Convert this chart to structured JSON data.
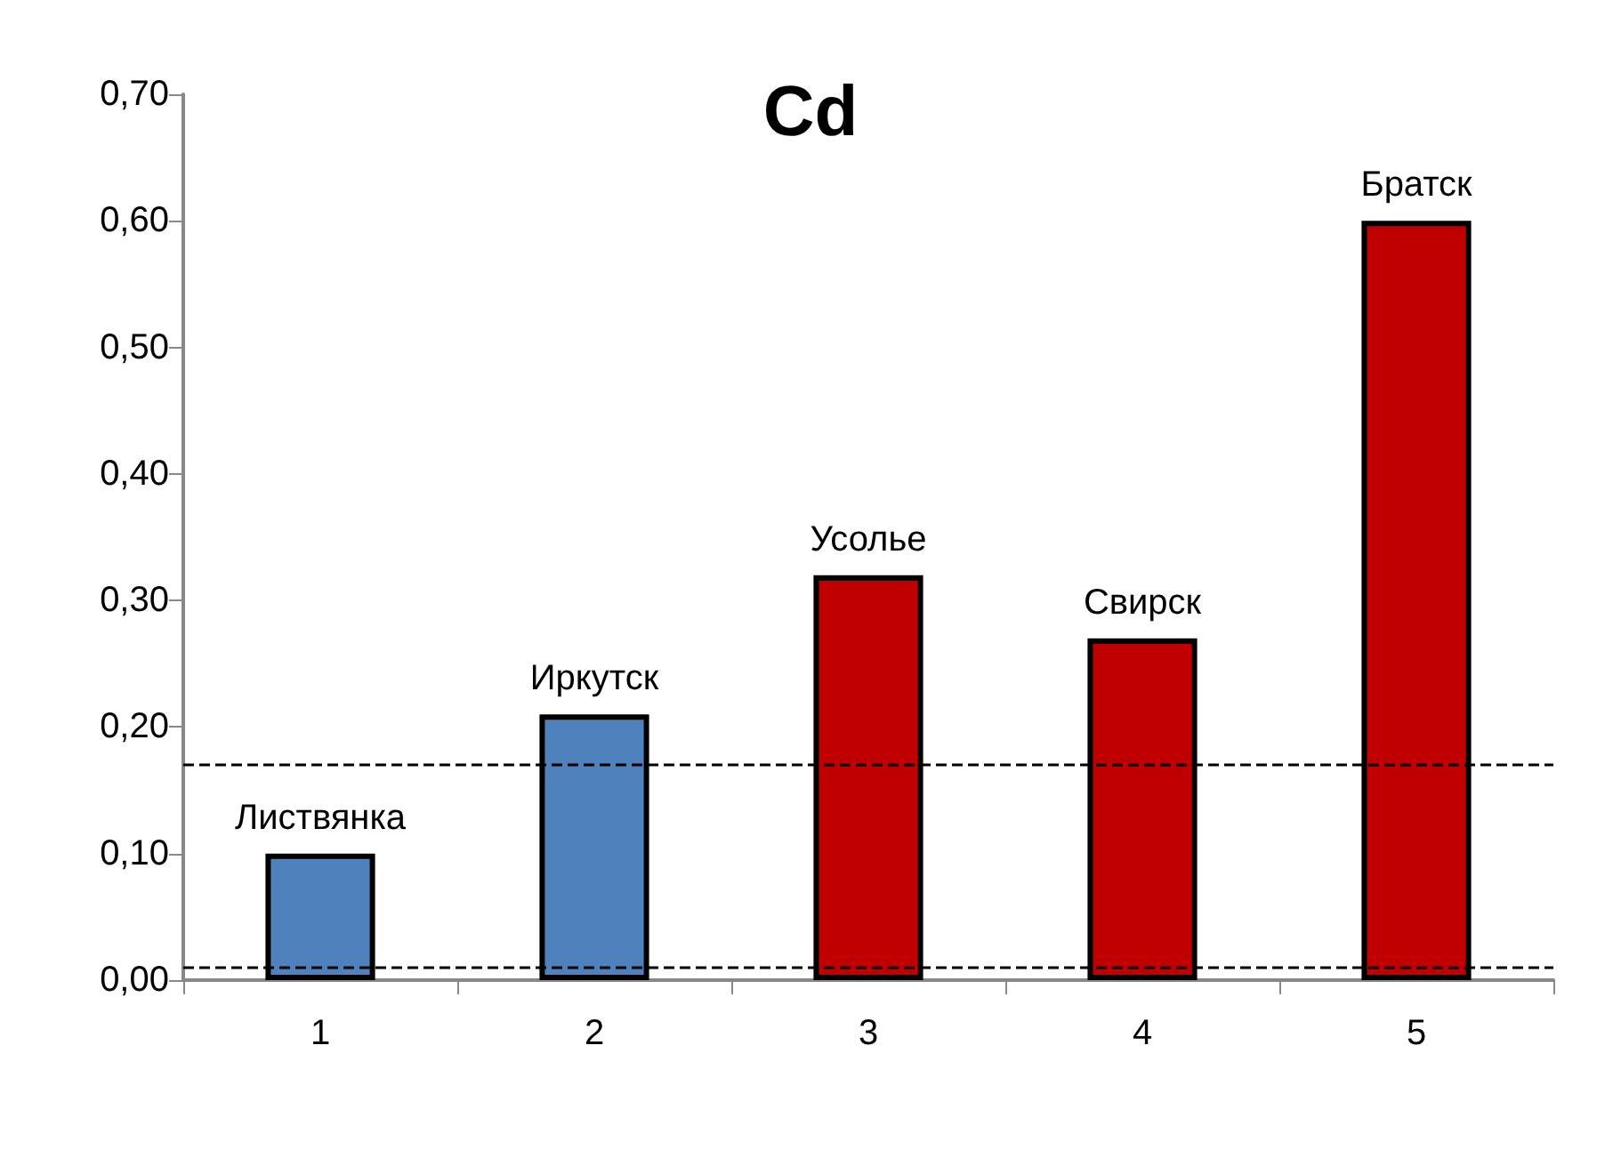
{
  "chart_data": {
    "type": "bar",
    "title": "Cd",
    "categories": [
      "1",
      "2",
      "3",
      "4",
      "5"
    ],
    "values": [
      0.1,
      0.21,
      0.32,
      0.27,
      0.6
    ],
    "colors": [
      "#4f81bd",
      "#4f81bd",
      "#c00000",
      "#c00000",
      "#c00000"
    ],
    "ylim": [
      0,
      0.7
    ],
    "yticks": [
      {
        "value": 0,
        "label": "0,00"
      },
      {
        "value": 0.1,
        "label": "0,10"
      },
      {
        "value": 0.2,
        "label": "0,20"
      },
      {
        "value": 0.3,
        "label": "0,30"
      },
      {
        "value": 0.4,
        "label": "0,40"
      },
      {
        "value": 0.5,
        "label": "0,50"
      },
      {
        "value": 0.6,
        "label": "0,60"
      },
      {
        "value": 0.7,
        "label": "0,70"
      }
    ],
    "ref_lines": [
      {
        "axis": "y",
        "value": 0.17,
        "color": "#000000",
        "line_style": "dashed"
      },
      {
        "axis": "y",
        "value": 0.01,
        "color": "#000000",
        "line_style": "dashed"
      }
    ],
    "annotations": [
      {
        "text": "Листвянка",
        "x": "1",
        "y": 0.1
      },
      {
        "text": "Иркутск",
        "x": "2",
        "y": 0.21
      },
      {
        "text": "Усолье",
        "x": "3",
        "y": 0.32
      },
      {
        "text": "Свирск",
        "x": "4",
        "y": 0.27
      },
      {
        "text": "Братск",
        "x": "5",
        "y": 0.6
      }
    ],
    "grid": false
  }
}
